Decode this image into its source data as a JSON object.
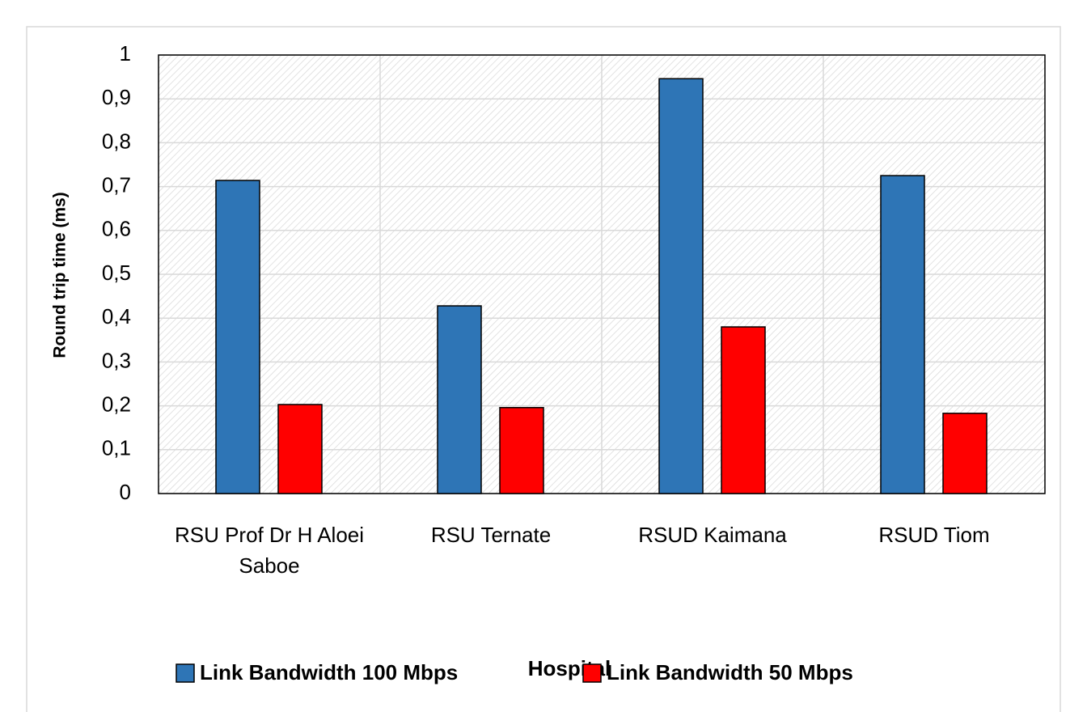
{
  "chart_data": {
    "type": "bar",
    "categories": [
      "RSU Prof Dr H Aloei Saboe",
      "RSU Ternate",
      "RSUD Kaimana",
      "RSUD Tiom"
    ],
    "series": [
      {
        "name": "Link Bandwidth 100 Mbps",
        "color": "#2e75b6",
        "values": [
          0.714,
          0.428,
          0.946,
          0.725
        ]
      },
      {
        "name": "Link Bandwidth 50 Mbps",
        "color": "#ff0000",
        "values": [
          0.203,
          0.196,
          0.38,
          0.183
        ]
      }
    ],
    "x_label": "Hospital",
    "y_label": "Round trip time (ms)",
    "ylim": [
      0,
      1
    ],
    "yticks": [
      0,
      {
        "value": 0.1,
        "label": "0,1"
      },
      {
        "value": 0.2,
        "label": "0,2"
      },
      {
        "value": 0.3,
        "label": "0,3"
      },
      {
        "value": 0.4,
        "label": "0,4"
      },
      {
        "value": 0.5,
        "label": "0,5"
      },
      {
        "value": 0.6,
        "label": "0,6"
      },
      {
        "value": 0.7,
        "label": "0,7"
      },
      {
        "value": 0.8,
        "label": "0,8"
      },
      {
        "value": 0.9,
        "label": "0,9"
      },
      1
    ],
    "grid": true
  }
}
